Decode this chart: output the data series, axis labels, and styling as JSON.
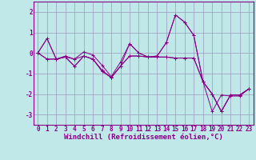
{
  "xlabel": "Windchill (Refroidissement éolien,°C)",
  "background_color": "#c0e8e8",
  "grid_color": "#9999bb",
  "line_color": "#880088",
  "xlim": [
    -0.5,
    23.5
  ],
  "ylim": [
    -3.5,
    2.5
  ],
  "yticks": [
    -3,
    -2,
    -1,
    0,
    1,
    2
  ],
  "xticks": [
    0,
    1,
    2,
    3,
    4,
    5,
    6,
    7,
    8,
    9,
    10,
    11,
    12,
    13,
    14,
    15,
    16,
    17,
    18,
    19,
    20,
    21,
    22,
    23
  ],
  "series1_x": [
    0,
    1,
    2,
    3,
    4,
    5,
    6,
    7,
    8,
    9,
    10,
    11,
    12,
    13,
    14,
    15,
    16,
    17,
    18,
    19,
    20,
    21,
    22,
    23
  ],
  "series1_y": [
    0.0,
    0.7,
    -0.3,
    -0.2,
    -0.3,
    -0.15,
    -0.3,
    -0.9,
    -1.2,
    -0.65,
    -0.15,
    -0.15,
    -0.2,
    -0.2,
    -0.2,
    -0.25,
    -0.25,
    -0.25,
    -1.4,
    -2.0,
    -2.85,
    -2.05,
    -2.05,
    -1.75
  ],
  "series2_x": [
    0,
    1,
    2,
    3,
    4,
    5,
    6,
    7,
    8,
    9,
    10,
    11,
    12,
    13,
    14,
    15,
    16,
    17,
    18,
    19,
    20,
    21,
    22,
    23
  ],
  "series2_y": [
    0.0,
    -0.3,
    -0.3,
    -0.2,
    -0.65,
    -0.15,
    -0.3,
    -0.85,
    -1.2,
    -0.65,
    0.45,
    0.0,
    -0.2,
    -0.15,
    0.5,
    1.85,
    1.5,
    0.85,
    -1.4,
    -2.0,
    -2.85,
    -2.05,
    -2.05,
    -1.75
  ],
  "series3_x": [
    0,
    1,
    2,
    3,
    4,
    5,
    6,
    7,
    8,
    9,
    10,
    11,
    12,
    13,
    14,
    15,
    16,
    17,
    18,
    19,
    20,
    21,
    22,
    23
  ],
  "series3_y": [
    0.0,
    -0.3,
    -0.3,
    -0.2,
    -0.65,
    -0.15,
    -0.3,
    -0.85,
    -1.2,
    -0.65,
    -0.15,
    -0.15,
    -0.2,
    -0.2,
    -0.2,
    -0.25,
    -0.25,
    -0.25,
    -1.4,
    -2.0,
    -2.85,
    -2.05,
    -2.05,
    -1.75
  ],
  "series4_x": [
    0,
    1,
    2,
    3,
    4,
    5,
    6,
    7,
    8,
    9,
    10,
    11,
    12,
    13,
    14,
    15,
    16,
    17,
    18,
    19,
    20,
    21,
    22,
    23
  ],
  "series4_y": [
    0.0,
    0.7,
    -0.3,
    -0.15,
    -0.3,
    0.05,
    -0.1,
    -0.6,
    -1.15,
    -0.45,
    0.45,
    0.0,
    -0.2,
    -0.15,
    0.5,
    1.85,
    1.5,
    0.85,
    -1.4,
    -2.85,
    -2.05,
    -2.1,
    -2.1,
    -1.75
  ],
  "tick_fontsize": 5.5,
  "label_fontsize": 6.5
}
